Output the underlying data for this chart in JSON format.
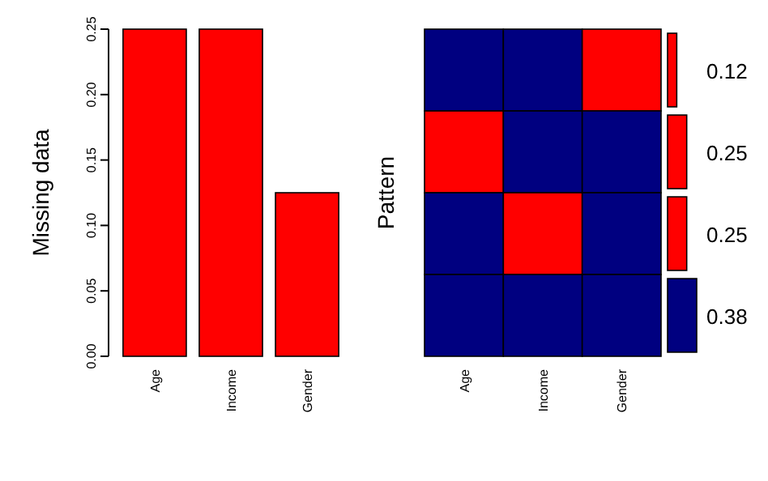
{
  "chart_data": [
    {
      "type": "bar",
      "ylabel": "Missing data",
      "categories": [
        "Age",
        "Income",
        "Gender"
      ],
      "values": [
        0.25,
        0.25,
        0.125
      ],
      "color": "#ff0000",
      "ylim": [
        0,
        0.25
      ],
      "yticks": [
        {
          "value": 0,
          "label": "0.00"
        },
        {
          "value": 0.05,
          "label": "0.05"
        },
        {
          "value": 0.1,
          "label": "0.10"
        },
        {
          "value": 0.15,
          "label": "0.15"
        },
        {
          "value": 0.2,
          "label": "0.20"
        },
        {
          "value": 0.25,
          "label": "0.25"
        }
      ]
    },
    {
      "type": "other",
      "ylabel": "Pattern",
      "categories": [
        "Age",
        "Income",
        "Gender"
      ],
      "colors": [
        [
          "#000080",
          "#000080",
          "#ff0000"
        ],
        [
          "#ff0000",
          "#000080",
          "#000080"
        ],
        [
          "#000080",
          "#ff0000",
          "#000080"
        ],
        [
          "#000080",
          "#000080",
          "#000080"
        ]
      ]
    },
    {
      "type": "bar",
      "orientation": "horizontal",
      "categories": [
        null,
        null,
        null,
        null
      ],
      "values": [
        0.12,
        0.25,
        0.25,
        0.38
      ],
      "colors": [
        "#ff0000",
        "#ff0000",
        "#ff0000",
        "#000080"
      ],
      "data_labels": true
    }
  ]
}
